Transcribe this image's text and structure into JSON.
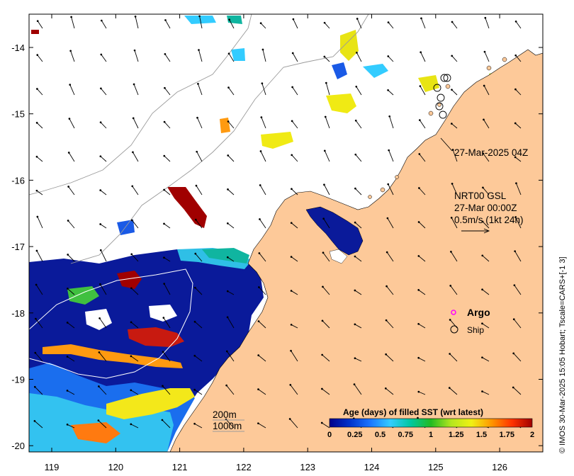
{
  "map": {
    "lon_ticks": [
      "119",
      "120",
      "121",
      "122",
      "123",
      "124",
      "125",
      "126"
    ],
    "lat_ticks": [
      "-14",
      "-15",
      "-16",
      "-17",
      "-18",
      "-19",
      "-20"
    ],
    "ship_annotation": "27-Mar-2025 04Z",
    "current_info": {
      "line1": "NRT00 GSL",
      "line2": "27-Mar 00:00Z",
      "line3": "0.5m/s (1kt 24h)"
    },
    "depth_labels": {
      "shallow": "200m",
      "deep": "1000m"
    },
    "markers": {
      "argo_label": "Argo",
      "ship_label": "Ship"
    },
    "legend": {
      "title": "Age (days) of filled SST (wrt latest)",
      "ticks": [
        "0",
        "0.25",
        "0.5",
        "0.75",
        "1",
        "1.25",
        "1.5",
        "1.75",
        "2"
      ],
      "colors": [
        "#00008b",
        "#0033cc",
        "#1a75ff",
        "#33ccff",
        "#00c8a0",
        "#22bb22",
        "#b4e61e",
        "#f0f014",
        "#ff9600",
        "#ff3300",
        "#a00000"
      ]
    },
    "credit": "© IMOS 30-Mar-2025 15:05 Hobart; Tscale=CARS+[-1 3]",
    "colors": {
      "land": "#fdc999",
      "ocean": "#ffffff"
    }
  }
}
